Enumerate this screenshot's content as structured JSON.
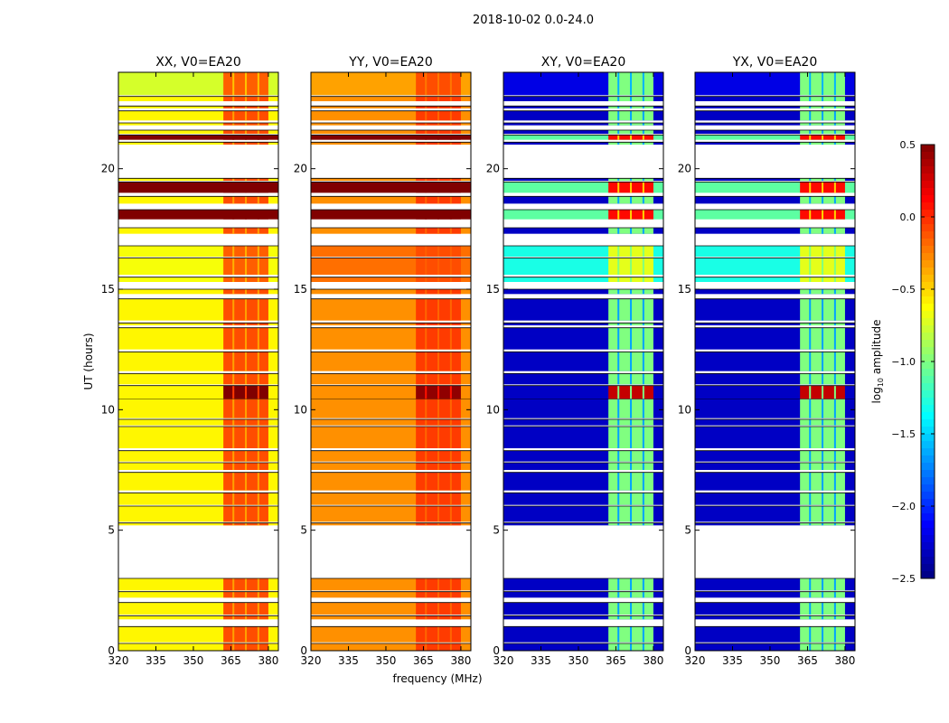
{
  "chart_data": {
    "type": "heatmap",
    "title": "2018-10-02 0.0-24.0",
    "xlabel": "frequency (MHz)",
    "ylabel": "UT (hours)",
    "xlim": [
      320,
      384
    ],
    "ylim": [
      0,
      24
    ],
    "xticks": [
      "320",
      "335",
      "350",
      "365",
      "380"
    ],
    "xtick_values": [
      320,
      335,
      350,
      365,
      380
    ],
    "yticks": [
      "0",
      "5",
      "10",
      "15",
      "20"
    ],
    "ytick_values": [
      0,
      5,
      10,
      15,
      20
    ],
    "rfi_band_mhz": [
      362,
      380
    ],
    "rfi_subchannel_edges_mhz": [
      366,
      371,
      376
    ],
    "colorbar": {
      "label_prefix": "log",
      "label_sub": "10",
      "label_suffix": " amplitude",
      "colormap": "jet",
      "vmin": -2.5,
      "vmax": 0.5,
      "ticks": [
        "0.5",
        "0.0",
        "−0.5",
        "−1.0",
        "−1.5",
        "−2.0",
        "−2.5"
      ],
      "tick_values": [
        0.5,
        0.0,
        -0.5,
        -1.0,
        -1.5,
        -2.0,
        -2.5
      ]
    },
    "time_bands_hours": [
      [
        0.0,
        0.3,
        "n"
      ],
      [
        0.35,
        1.0,
        "n"
      ],
      [
        1.3,
        1.45,
        "n"
      ],
      [
        1.5,
        2.0,
        "n"
      ],
      [
        2.2,
        2.45,
        "n"
      ],
      [
        2.5,
        3.0,
        "n"
      ],
      [
        5.2,
        5.3,
        "n"
      ],
      [
        5.35,
        6.0,
        "n"
      ],
      [
        6.05,
        6.55,
        "n"
      ],
      [
        6.65,
        7.4,
        "n"
      ],
      [
        7.5,
        7.8,
        "n"
      ],
      [
        7.85,
        8.3,
        "n"
      ],
      [
        8.4,
        9.3,
        "n"
      ],
      [
        9.35,
        9.6,
        "n"
      ],
      [
        9.65,
        10.45,
        "n"
      ],
      [
        10.45,
        11.0,
        "h"
      ],
      [
        11.05,
        11.5,
        "n"
      ],
      [
        11.6,
        12.4,
        "n"
      ],
      [
        12.5,
        13.4,
        "n"
      ],
      [
        13.5,
        13.6,
        "n"
      ],
      [
        13.7,
        14.6,
        "n"
      ],
      [
        14.8,
        15.0,
        "n"
      ],
      [
        15.3,
        15.5,
        "m"
      ],
      [
        15.6,
        16.3,
        "m"
      ],
      [
        16.35,
        16.8,
        "m"
      ],
      [
        17.3,
        17.55,
        "n"
      ],
      [
        17.9,
        18.3,
        "f"
      ],
      [
        18.55,
        18.85,
        "n"
      ],
      [
        19.0,
        19.45,
        "f"
      ],
      [
        19.5,
        19.6,
        "n"
      ],
      [
        21.0,
        21.1,
        "n"
      ],
      [
        21.2,
        21.4,
        "f"
      ],
      [
        21.45,
        21.6,
        "n"
      ],
      [
        21.8,
        21.9,
        "n"
      ],
      [
        22.0,
        22.4,
        "n"
      ],
      [
        22.5,
        22.6,
        "n"
      ],
      [
        22.8,
        23.0,
        "n"
      ],
      [
        23.05,
        24.0,
        "t"
      ]
    ],
    "panels": [
      {
        "title": "XX, V0=EA20",
        "levels": {
          "n": [
            -0.6,
            -0.1
          ],
          "h": [
            -0.6,
            0.5
          ],
          "m": [
            -0.65,
            -0.15
          ],
          "f": [
            0.5,
            0.5
          ],
          "t": [
            -0.75,
            -0.15
          ]
        }
      },
      {
        "title": "YY, V0=EA20",
        "levels": {
          "n": [
            -0.3,
            -0.05
          ],
          "h": [
            -0.3,
            0.45
          ],
          "m": [
            -0.2,
            -0.1
          ],
          "f": [
            0.5,
            0.5
          ],
          "t": [
            -0.35,
            -0.1
          ]
        }
      },
      {
        "title": "XY, V0=EA20",
        "levels": {
          "n": [
            -2.3,
            -1.0
          ],
          "h": [
            -2.3,
            0.3
          ],
          "m": [
            -1.3,
            -0.7
          ],
          "f": [
            -1.1,
            0.1
          ],
          "t": [
            -2.2,
            -1.0
          ]
        }
      },
      {
        "title": "YX, V0=EA20",
        "levels": {
          "n": [
            -2.3,
            -1.0
          ],
          "h": [
            -2.3,
            0.3
          ],
          "m": [
            -1.3,
            -0.7
          ],
          "f": [
            -1.1,
            0.1
          ],
          "t": [
            -2.2,
            -1.0
          ]
        }
      }
    ]
  }
}
